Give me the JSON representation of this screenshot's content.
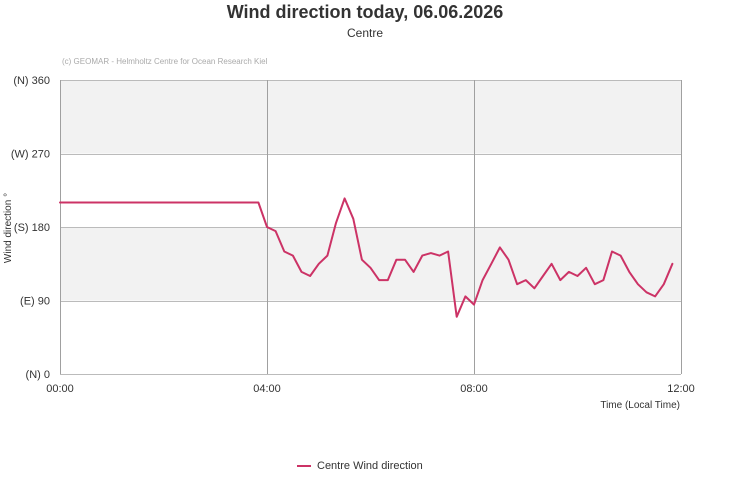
{
  "chart_data": {
    "type": "line",
    "title": "Wind direction today, 06.06.2026",
    "subtitle": "Centre",
    "credit": "(c) GEOMAR - Helmholtz Centre for Ocean Research Kiel",
    "xlabel": "Time (Local Time)",
    "ylabel": "Wind direction °",
    "xlim": [
      "00:00",
      "12:00"
    ],
    "ylim": [
      0,
      360
    ],
    "x_ticks": [
      "00:00",
      "04:00",
      "08:00",
      "12:00"
    ],
    "y_ticks": [
      {
        "value": 0,
        "label": "(N) 0"
      },
      {
        "value": 90,
        "label": "(E) 90"
      },
      {
        "value": 180,
        "label": "(S) 180"
      },
      {
        "value": 270,
        "label": "(W) 270"
      },
      {
        "value": 360,
        "label": "(N) 360"
      }
    ],
    "bands": [
      {
        "from": 0,
        "to": 90,
        "color": "#ffffff"
      },
      {
        "from": 90,
        "to": 180,
        "color": "#f2f2f2"
      },
      {
        "from": 180,
        "to": 270,
        "color": "#ffffff"
      },
      {
        "from": 270,
        "to": 360,
        "color": "#f2f2f2"
      }
    ],
    "grid": true,
    "legend_position": "bottom-center",
    "series": [
      {
        "name": "Centre Wind direction",
        "color": "#cc3366",
        "x": [
          "00:00",
          "00:10",
          "00:20",
          "00:30",
          "00:40",
          "00:50",
          "01:00",
          "01:10",
          "01:20",
          "01:30",
          "01:40",
          "01:50",
          "02:00",
          "02:10",
          "02:20",
          "02:30",
          "02:40",
          "02:50",
          "03:00",
          "03:10",
          "03:20",
          "03:30",
          "03:40",
          "03:50",
          "04:00",
          "04:10",
          "04:20",
          "04:30",
          "04:40",
          "04:50",
          "05:00",
          "05:10",
          "05:20",
          "05:30",
          "05:40",
          "05:50",
          "06:00",
          "06:10",
          "06:20",
          "06:30",
          "06:40",
          "06:50",
          "07:00",
          "07:10",
          "07:20",
          "07:30",
          "07:40",
          "07:50",
          "08:00",
          "08:10",
          "08:20",
          "08:30",
          "08:40",
          "08:50",
          "09:00",
          "09:10",
          "09:20",
          "09:30",
          "09:40",
          "09:50",
          "10:00",
          "10:10",
          "10:20",
          "10:30",
          "10:40",
          "10:50",
          "11:00",
          "11:10",
          "11:20",
          "11:30",
          "11:40",
          "11:50"
        ],
        "values": [
          210,
          210,
          210,
          210,
          210,
          210,
          210,
          210,
          210,
          210,
          210,
          210,
          210,
          210,
          210,
          210,
          210,
          210,
          210,
          210,
          210,
          210,
          210,
          210,
          180,
          175,
          150,
          145,
          125,
          120,
          135,
          145,
          185,
          215,
          190,
          140,
          130,
          115,
          115,
          140,
          140,
          125,
          145,
          148,
          145,
          150,
          70,
          95,
          85,
          115,
          135,
          155,
          140,
          110,
          115,
          105,
          120,
          135,
          115,
          125,
          120,
          130,
          110,
          115,
          150,
          145,
          125,
          110,
          100,
          95,
          110,
          135
        ]
      }
    ]
  }
}
